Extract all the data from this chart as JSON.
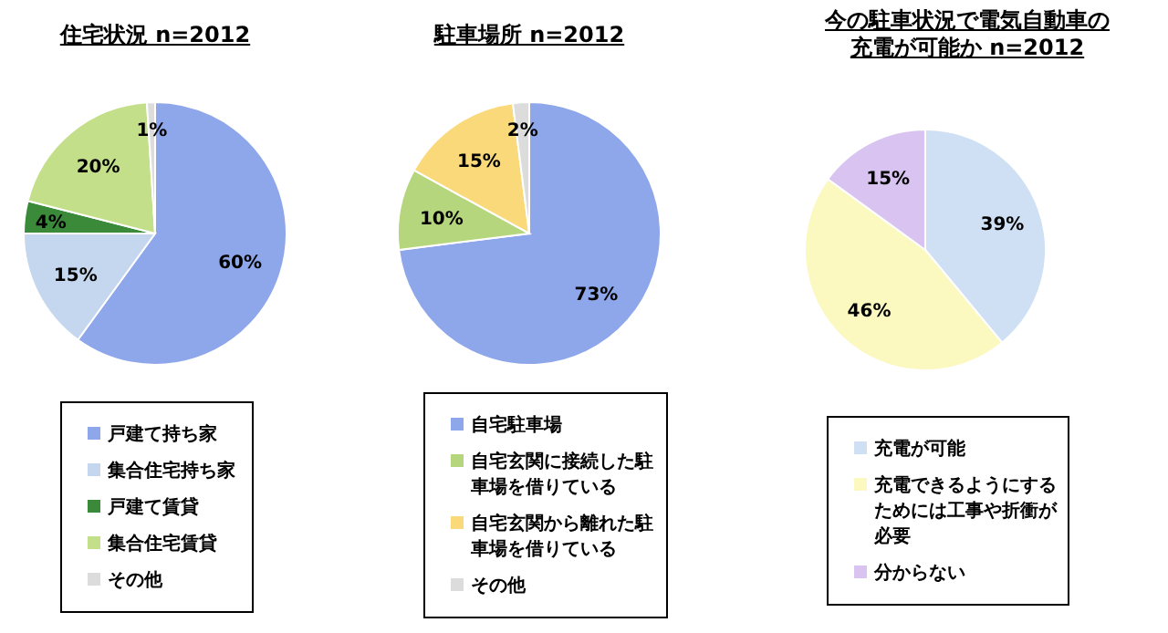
{
  "chart_data": [
    {
      "type": "pie",
      "title": "住宅状況  n=2012",
      "categories": [
        "戸建て持ち家",
        "集合住宅持ち家",
        "戸建て賃貸",
        "集合住宅賃貸",
        "その他"
      ],
      "values": [
        60,
        15,
        4,
        20,
        1
      ],
      "value_labels": [
        "60%",
        "15%",
        "4%",
        "20%",
        "1%"
      ],
      "colors": [
        "#8ea6ea",
        "#c5d7ef",
        "#3a8a3a",
        "#c3df8a",
        "#dcdcdc"
      ],
      "legend": "bottom"
    },
    {
      "type": "pie",
      "title": "駐車場所  n=2012",
      "categories": [
        "自宅駐車場",
        "自宅玄関に接続した駐車場を借りている",
        "自宅玄関から離れた駐車場を借りている",
        "その他"
      ],
      "values": [
        73,
        10,
        15,
        2
      ],
      "value_labels": [
        "73%",
        "10%",
        "15%",
        "2%"
      ],
      "colors": [
        "#8ea6ea",
        "#b5d67c",
        "#f9d97a",
        "#dcdcdc"
      ],
      "legend": "bottom"
    },
    {
      "type": "pie",
      "title": "今の駐車状況で電気自動車の充電が可能か  n=2012",
      "categories": [
        "充電が可能",
        "充電できるようにするためには工事や折衝が必要",
        "分からない"
      ],
      "values": [
        39,
        46,
        15
      ],
      "value_labels": [
        "39%",
        "46%",
        "15%"
      ],
      "colors": [
        "#cfe0f4",
        "#fbf8c0",
        "#d9c3f0"
      ],
      "legend": "bottom"
    }
  ]
}
